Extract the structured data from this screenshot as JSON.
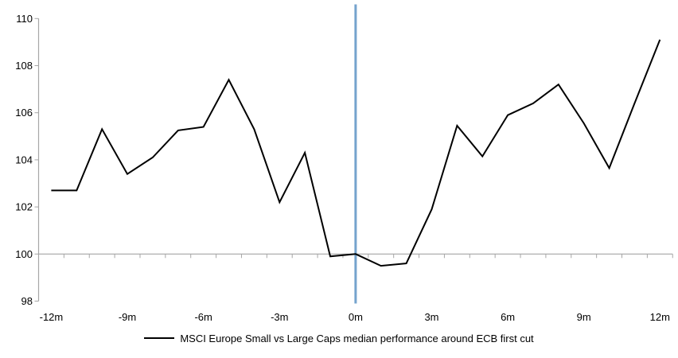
{
  "chart_data": {
    "type": "line",
    "title": "",
    "x": [
      -12,
      -11,
      -10,
      -9,
      -8,
      -7,
      -6,
      -5,
      -4,
      -3,
      -2,
      -1,
      0,
      1,
      2,
      3,
      4,
      5,
      6,
      7,
      8,
      9,
      10,
      11,
      12
    ],
    "series": [
      {
        "name": "MSCI Europe Small vs Large Caps median performance around ECB first cut",
        "color": "#000000",
        "values": [
          102.7,
          102.7,
          105.3,
          103.4,
          104.1,
          105.25,
          105.4,
          107.4,
          105.3,
          102.2,
          104.3,
          99.9,
          100.0,
          99.5,
          99.6,
          101.9,
          105.45,
          104.15,
          105.9,
          106.4,
          107.2,
          105.55,
          103.65,
          106.4,
          109.1
        ]
      }
    ],
    "xlim": [
      -12,
      12
    ],
    "ylim": [
      98,
      110
    ],
    "y_ticks": [
      98,
      100,
      102,
      104,
      106,
      108,
      110
    ],
    "x_ticks": [
      {
        "value": -12,
        "label": "-12m"
      },
      {
        "value": -9,
        "label": "-9m"
      },
      {
        "value": -6,
        "label": "-6m"
      },
      {
        "value": -3,
        "label": "-3m"
      },
      {
        "value": 0,
        "label": "0m"
      },
      {
        "value": 3,
        "label": "3m"
      },
      {
        "value": 6,
        "label": "6m"
      },
      {
        "value": 9,
        "label": "9m"
      },
      {
        "value": 12,
        "label": "12m"
      }
    ],
    "x_minor_tick_every_months": 1,
    "axis_at_y": 100,
    "event_line": {
      "x": 0,
      "color": "#75A3CD"
    },
    "colors": {
      "axis": "#A6A6A6",
      "text": "#000000"
    },
    "grid": "off",
    "legend_position": "bottom"
  }
}
